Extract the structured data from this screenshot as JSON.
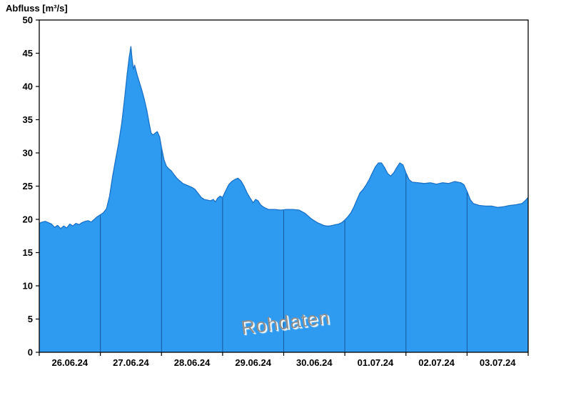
{
  "chart_data": {
    "type": "area",
    "title": "Abfluss [m³/s]",
    "ylabel": "Abfluss [m³/s]",
    "xlabel": "",
    "watermark": "Rohdaten",
    "ylim": [
      0,
      50
    ],
    "ytick_step": 5,
    "yticks": [
      0,
      5,
      10,
      15,
      20,
      25,
      30,
      35,
      40,
      45,
      50
    ],
    "x_range_days": [
      0,
      8
    ],
    "x_tick_labels": [
      "26.06.24",
      "27.06.24",
      "28.06.24",
      "29.06.24",
      "30.06.24",
      "01.07.24",
      "02.07.24",
      "03.07.24"
    ],
    "day_separators": [
      1,
      2,
      3,
      4,
      5,
      6,
      7
    ],
    "legend": [],
    "grid": false,
    "colors": {
      "fill": "#2F9BF0",
      "edge": "#1A72C8",
      "separator": "#0F4C8C",
      "axis": "#000000",
      "watermark": "#8E8E8E",
      "background": "#FFFFFF"
    },
    "points": [
      [
        0.0,
        19.4
      ],
      [
        0.05,
        19.6
      ],
      [
        0.1,
        19.7
      ],
      [
        0.15,
        19.5
      ],
      [
        0.2,
        19.3
      ],
      [
        0.25,
        18.8
      ],
      [
        0.3,
        19.1
      ],
      [
        0.35,
        18.6
      ],
      [
        0.4,
        19.0
      ],
      [
        0.45,
        18.7
      ],
      [
        0.5,
        19.3
      ],
      [
        0.55,
        19.0
      ],
      [
        0.6,
        19.4
      ],
      [
        0.65,
        19.2
      ],
      [
        0.7,
        19.5
      ],
      [
        0.75,
        19.7
      ],
      [
        0.8,
        19.8
      ],
      [
        0.85,
        19.6
      ],
      [
        0.9,
        20.0
      ],
      [
        0.95,
        20.4
      ],
      [
        1.0,
        20.7
      ],
      [
        1.05,
        21.0
      ],
      [
        1.1,
        21.6
      ],
      [
        1.15,
        23.5
      ],
      [
        1.2,
        26.5
      ],
      [
        1.25,
        29.0
      ],
      [
        1.3,
        31.5
      ],
      [
        1.35,
        34.5
      ],
      [
        1.4,
        38.5
      ],
      [
        1.44,
        42.0
      ],
      [
        1.47,
        44.3
      ],
      [
        1.5,
        46.0
      ],
      [
        1.52,
        44.0
      ],
      [
        1.54,
        42.6
      ],
      [
        1.56,
        43.2
      ],
      [
        1.6,
        41.8
      ],
      [
        1.64,
        40.6
      ],
      [
        1.68,
        39.4
      ],
      [
        1.72,
        38.0
      ],
      [
        1.76,
        36.4
      ],
      [
        1.8,
        34.4
      ],
      [
        1.83,
        33.0
      ],
      [
        1.86,
        32.7
      ],
      [
        1.9,
        33.0
      ],
      [
        1.93,
        33.2
      ],
      [
        1.97,
        32.4
      ],
      [
        2.0,
        30.8
      ],
      [
        2.04,
        29.0
      ],
      [
        2.08,
        28.0
      ],
      [
        2.12,
        27.6
      ],
      [
        2.16,
        27.3
      ],
      [
        2.2,
        26.8
      ],
      [
        2.25,
        26.2
      ],
      [
        2.3,
        25.8
      ],
      [
        2.35,
        25.4
      ],
      [
        2.4,
        25.2
      ],
      [
        2.45,
        25.0
      ],
      [
        2.5,
        24.8
      ],
      [
        2.55,
        24.5
      ],
      [
        2.6,
        23.9
      ],
      [
        2.65,
        23.3
      ],
      [
        2.7,
        23.0
      ],
      [
        2.75,
        22.9
      ],
      [
        2.8,
        22.8
      ],
      [
        2.85,
        23.0
      ],
      [
        2.88,
        22.6
      ],
      [
        2.92,
        23.2
      ],
      [
        2.96,
        23.5
      ],
      [
        3.0,
        23.3
      ],
      [
        3.05,
        24.3
      ],
      [
        3.1,
        25.2
      ],
      [
        3.15,
        25.7
      ],
      [
        3.2,
        26.0
      ],
      [
        3.25,
        26.2
      ],
      [
        3.3,
        25.8
      ],
      [
        3.35,
        25.0
      ],
      [
        3.4,
        24.0
      ],
      [
        3.45,
        23.2
      ],
      [
        3.5,
        22.5
      ],
      [
        3.54,
        23.0
      ],
      [
        3.58,
        22.8
      ],
      [
        3.62,
        22.2
      ],
      [
        3.66,
        21.9
      ],
      [
        3.7,
        21.7
      ],
      [
        3.75,
        21.5
      ],
      [
        3.85,
        21.5
      ],
      [
        3.95,
        21.4
      ],
      [
        4.05,
        21.5
      ],
      [
        4.15,
        21.5
      ],
      [
        4.25,
        21.4
      ],
      [
        4.35,
        20.9
      ],
      [
        4.45,
        20.1
      ],
      [
        4.5,
        19.8
      ],
      [
        4.55,
        19.5
      ],
      [
        4.6,
        19.3
      ],
      [
        4.65,
        19.1
      ],
      [
        4.7,
        19.0
      ],
      [
        4.75,
        19.0
      ],
      [
        4.8,
        19.1
      ],
      [
        4.85,
        19.2
      ],
      [
        4.9,
        19.3
      ],
      [
        4.95,
        19.5
      ],
      [
        5.0,
        19.9
      ],
      [
        5.05,
        20.4
      ],
      [
        5.1,
        21.0
      ],
      [
        5.15,
        21.9
      ],
      [
        5.2,
        23.0
      ],
      [
        5.25,
        24.0
      ],
      [
        5.3,
        24.5
      ],
      [
        5.35,
        25.2
      ],
      [
        5.4,
        26.0
      ],
      [
        5.45,
        27.0
      ],
      [
        5.5,
        27.9
      ],
      [
        5.55,
        28.5
      ],
      [
        5.6,
        28.5
      ],
      [
        5.65,
        27.8
      ],
      [
        5.7,
        26.9
      ],
      [
        5.75,
        26.5
      ],
      [
        5.8,
        27.0
      ],
      [
        5.85,
        27.8
      ],
      [
        5.9,
        28.5
      ],
      [
        5.95,
        28.2
      ],
      [
        6.0,
        27.0
      ],
      [
        6.05,
        26.0
      ],
      [
        6.1,
        25.6
      ],
      [
        6.2,
        25.5
      ],
      [
        6.3,
        25.4
      ],
      [
        6.4,
        25.5
      ],
      [
        6.5,
        25.3
      ],
      [
        6.6,
        25.5
      ],
      [
        6.7,
        25.4
      ],
      [
        6.8,
        25.7
      ],
      [
        6.9,
        25.5
      ],
      [
        6.95,
        25.2
      ],
      [
        7.0,
        24.2
      ],
      [
        7.05,
        23.0
      ],
      [
        7.1,
        22.4
      ],
      [
        7.2,
        22.1
      ],
      [
        7.3,
        22.0
      ],
      [
        7.4,
        22.0
      ],
      [
        7.5,
        21.8
      ],
      [
        7.6,
        21.9
      ],
      [
        7.7,
        22.1
      ],
      [
        7.8,
        22.2
      ],
      [
        7.9,
        22.4
      ],
      [
        7.95,
        22.8
      ],
      [
        8.0,
        23.3
      ]
    ]
  }
}
